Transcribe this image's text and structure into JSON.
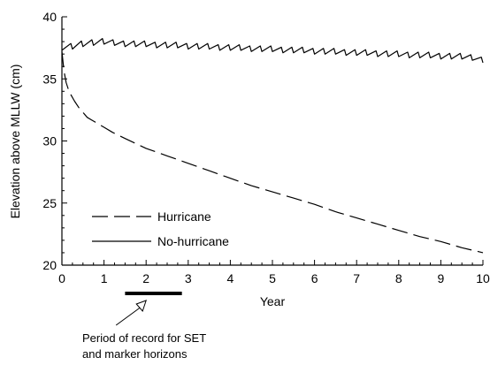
{
  "chart_data": {
    "type": "line",
    "xlabel": "Year",
    "ylabel": "Elevation above MLLW (cm)",
    "xlim": [
      0,
      10
    ],
    "ylim": [
      20,
      40
    ],
    "xticks": [
      "0",
      "1",
      "2",
      "3",
      "4",
      "5",
      "6",
      "7",
      "8",
      "9",
      "10"
    ],
    "yticks": [
      "20",
      "25",
      "30",
      "35",
      "40"
    ],
    "grid": false,
    "legend_position": "lower-left",
    "series": [
      {
        "name": "Hurricane",
        "style": "dashed",
        "color": "#000000",
        "x": [
          0,
          0.05,
          0.1,
          0.15,
          0.2,
          0.3,
          0.4,
          0.5,
          0.6,
          0.7,
          0.8,
          0.9,
          1.0,
          1.2,
          1.5,
          2.0,
          2.5,
          3.0,
          3.5,
          4.0,
          4.5,
          5.0,
          5.5,
          6.0,
          6.5,
          7.0,
          7.5,
          8.0,
          8.5,
          9.0,
          9.5,
          10.0
        ],
        "values": [
          37.2,
          35.6,
          34.7,
          34.2,
          33.8,
          33.2,
          32.7,
          32.3,
          31.9,
          31.7,
          31.5,
          31.3,
          31.1,
          30.7,
          30.2,
          29.4,
          28.8,
          28.2,
          27.6,
          27.0,
          26.4,
          25.9,
          25.4,
          24.9,
          24.3,
          23.8,
          23.3,
          22.8,
          22.3,
          21.9,
          21.4,
          21.0
        ]
      },
      {
        "name": "No-hurricane",
        "style": "solid",
        "color": "#000000",
        "x": [
          0,
          0.25,
          0.5,
          0.75,
          1.0,
          1.25,
          1.5,
          1.75,
          2.0,
          2.25,
          2.5,
          2.75,
          3.0,
          3.25,
          3.5,
          3.75,
          4.0,
          4.25,
          4.5,
          4.75,
          5.0,
          5.25,
          5.5,
          5.75,
          6.0,
          6.25,
          6.5,
          6.75,
          7.0,
          7.25,
          7.5,
          7.75,
          8.0,
          8.25,
          8.5,
          8.75,
          9.0,
          9.25,
          9.5,
          9.75,
          10.0
        ],
        "values": [
          37.3,
          37.4,
          37.6,
          37.7,
          37.8,
          37.7,
          37.6,
          37.6,
          37.6,
          37.5,
          37.5,
          37.5,
          37.4,
          37.4,
          37.4,
          37.3,
          37.3,
          37.3,
          37.2,
          37.2,
          37.2,
          37.1,
          37.1,
          37.1,
          37.0,
          37.0,
          37.0,
          36.9,
          36.9,
          36.9,
          36.8,
          36.8,
          36.8,
          36.7,
          36.7,
          36.7,
          36.6,
          36.6,
          36.6,
          36.5,
          36.3
        ]
      }
    ],
    "annotation": {
      "text_line1": "Period of record for SET",
      "text_line2": "and marker horizons",
      "period_start": 1.5,
      "period_end": 2.85,
      "arrow_target": 2.0
    }
  }
}
